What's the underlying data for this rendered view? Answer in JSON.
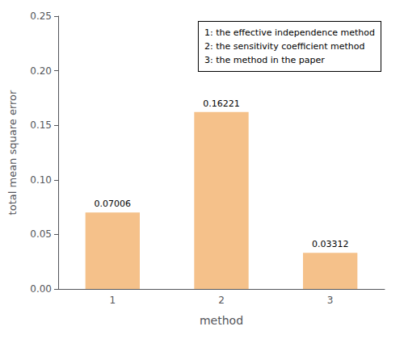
{
  "chart_data": {
    "type": "bar",
    "categories": [
      "1",
      "2",
      "3"
    ],
    "values": [
      0.07006,
      0.16221,
      0.03312
    ],
    "color": "#F5C18A",
    "data_labels": true,
    "xlabel": "method",
    "ylabel": "total mean square error",
    "ylim": [
      0,
      0.25
    ],
    "yticks": [
      {
        "value": 0.0,
        "label": "0.00"
      },
      {
        "value": 0.05,
        "label": "0.05"
      },
      {
        "value": 0.1,
        "label": "0.10"
      },
      {
        "value": 0.15,
        "label": "0.15"
      },
      {
        "value": 0.2,
        "label": "0.20"
      },
      {
        "value": 0.25,
        "label": "0.25"
      }
    ],
    "grid": false,
    "annotations": [
      "1: the effective independence method",
      "2: the sensitivity coefficient method",
      "3: the method in the paper"
    ]
  }
}
